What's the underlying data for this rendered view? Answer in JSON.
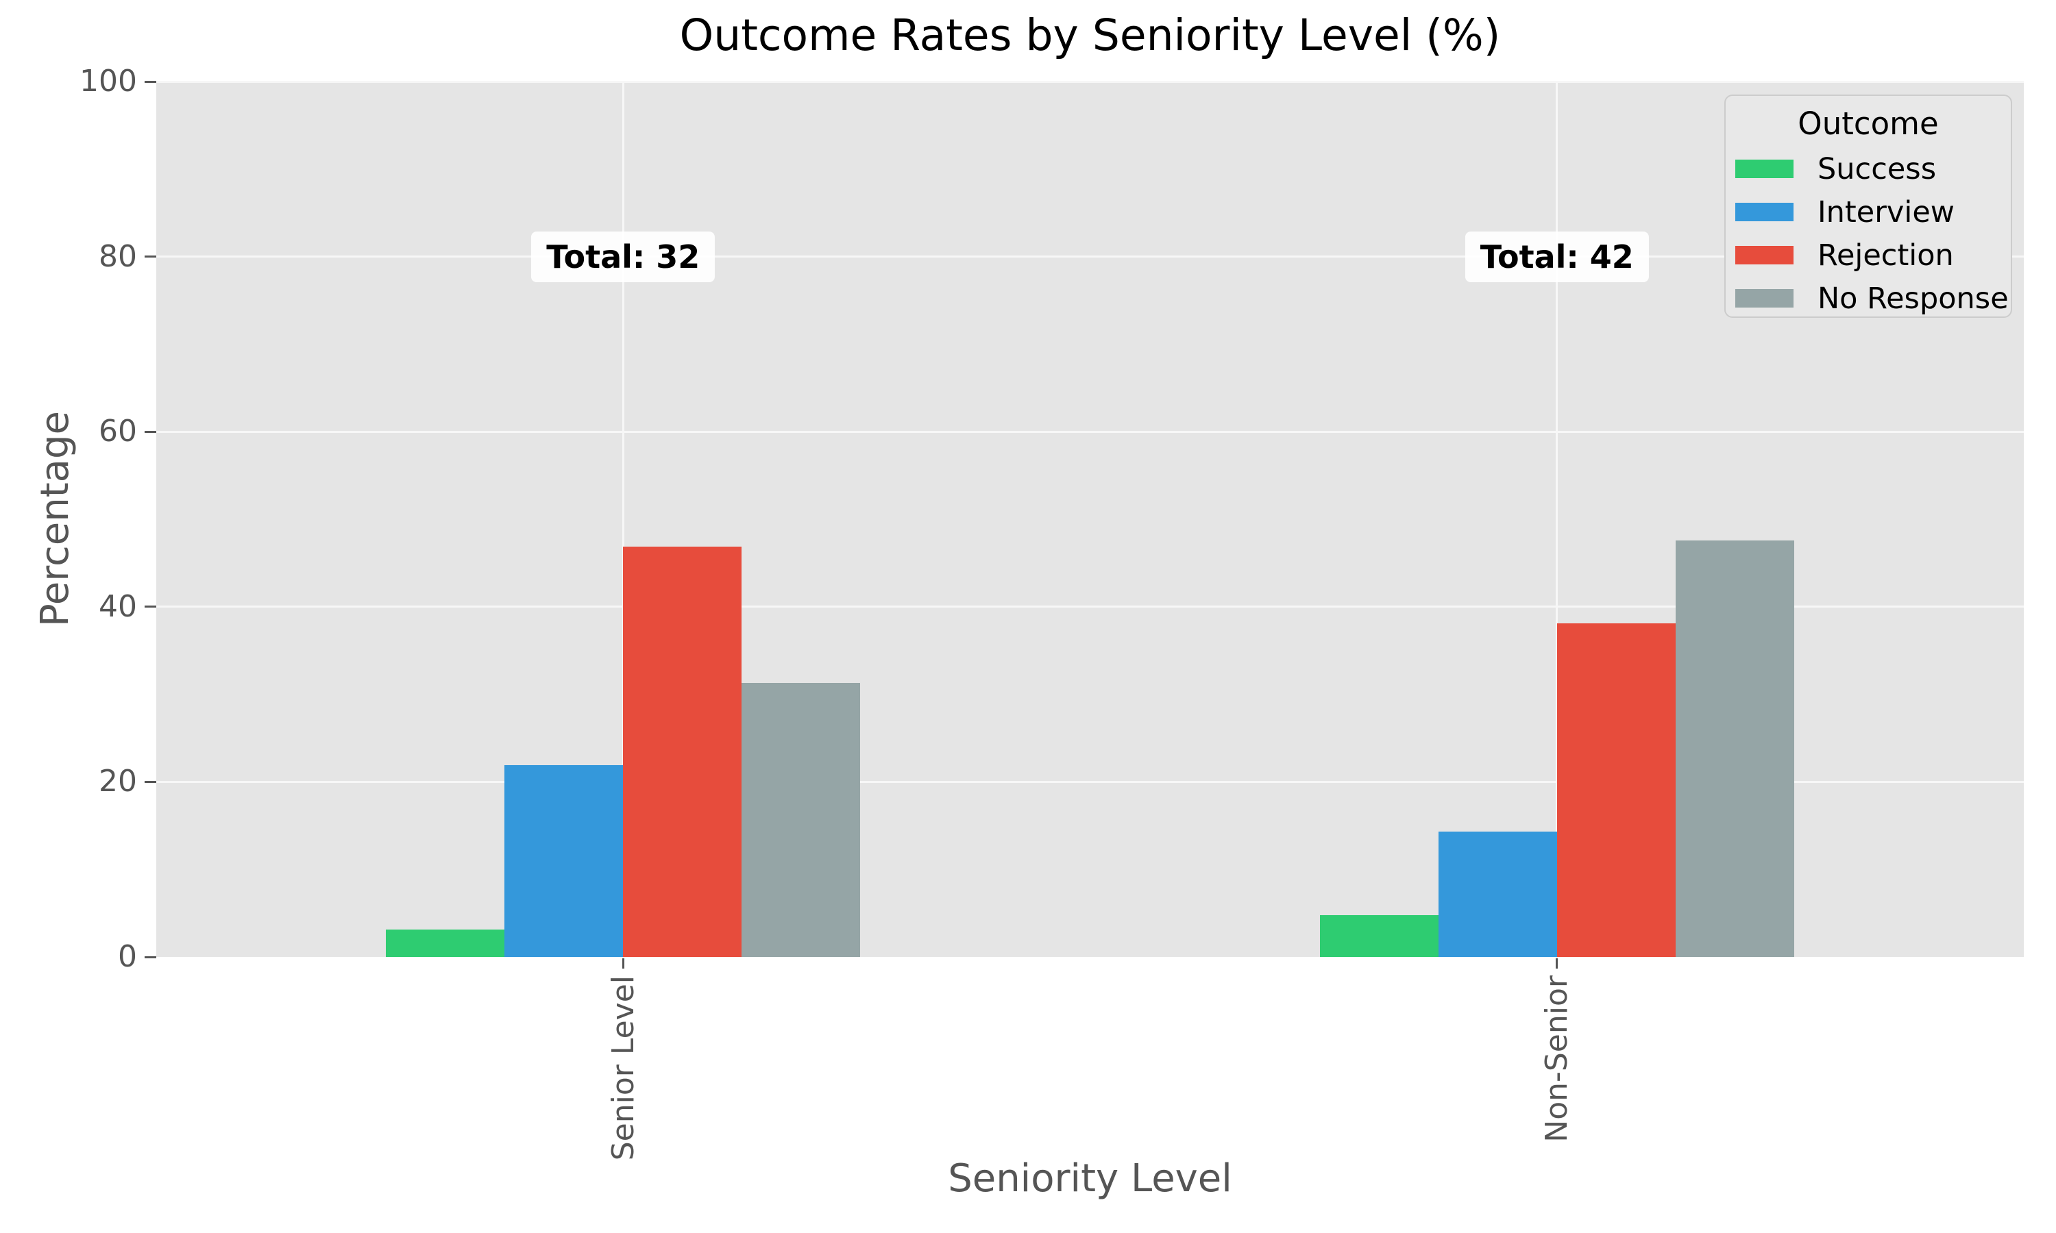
{
  "chart_data": {
    "type": "bar",
    "title": "Outcome Rates by Seniority Level (%)",
    "xlabel": "Seniority Level",
    "ylabel": "Percentage",
    "ylim": [
      0,
      100
    ],
    "yticks": [
      0,
      20,
      40,
      60,
      80,
      100
    ],
    "categories": [
      "Senior Level",
      "Non-Senior"
    ],
    "series": [
      {
        "name": "Success",
        "color": "#2ecc71",
        "values": [
          3.1,
          4.8
        ]
      },
      {
        "name": "Interview",
        "color": "#3498db",
        "values": [
          21.9,
          14.3
        ]
      },
      {
        "name": "Rejection",
        "color": "#e74c3c",
        "values": [
          46.9,
          38.1
        ]
      },
      {
        "name": "No Response",
        "color": "#95a5a6",
        "values": [
          31.3,
          47.6
        ]
      }
    ],
    "legend": {
      "title": "Outcome",
      "position": "upper-right"
    },
    "annotations": [
      {
        "text": "Total: 32",
        "category_index": 0,
        "y": 80
      },
      {
        "text": "Total: 42",
        "category_index": 1,
        "y": 80
      }
    ],
    "grid": true,
    "colors": {
      "plot_bg": "#e5e5e5",
      "grid": "#f7f7f7",
      "tick_text": "#555555",
      "title_text": "#000000",
      "annotation_bg": "#ffffff"
    }
  }
}
